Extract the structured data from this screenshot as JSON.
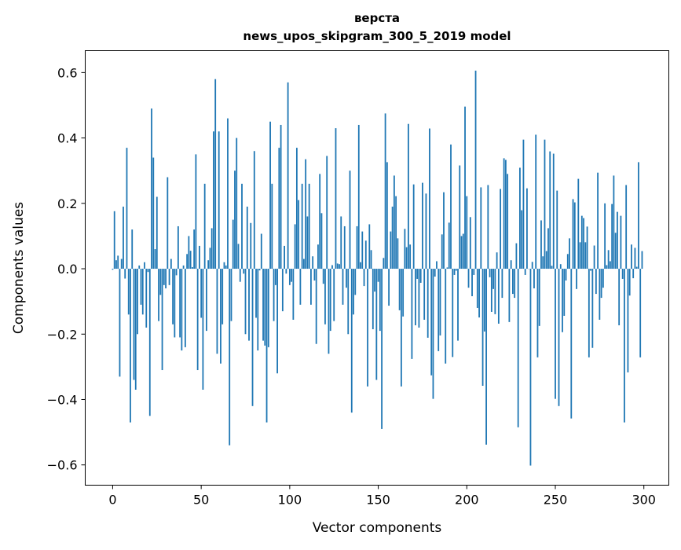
{
  "chart_data": {
    "type": "bar",
    "title_lines": [
      "верста",
      "news_upos_skipgram_300_5_2019 model"
    ],
    "xlabel": "Vector components",
    "ylabel": "Components values",
    "xlim": [
      -15.5,
      314.1
    ],
    "ylim": [
      -0.662,
      0.667
    ],
    "xticks": [
      0,
      50,
      100,
      150,
      200,
      250,
      300
    ],
    "xtick_labels": [
      "0",
      "50",
      "100",
      "150",
      "200",
      "250",
      "300"
    ],
    "yticks": [
      -0.6,
      -0.4,
      -0.2,
      0.0,
      0.2,
      0.4,
      0.6
    ],
    "ytick_labels": [
      "−0.6",
      "−0.4",
      "−0.2",
      "0.0",
      "0.2",
      "0.4",
      "0.6"
    ],
    "grid": false,
    "bar_color": "#1f77b4",
    "bar_width": 0.8,
    "values": [
      -0.003,
      0.176,
      0.026,
      0.04,
      -0.33,
      0.03,
      0.19,
      -0.03,
      0.37,
      -0.14,
      -0.47,
      0.12,
      -0.34,
      -0.37,
      -0.2,
      0.01,
      -0.11,
      -0.14,
      0.02,
      -0.18,
      -0.01,
      -0.45,
      0.49,
      0.34,
      0.06,
      0.22,
      -0.16,
      -0.08,
      -0.31,
      -0.05,
      -0.06,
      0.28,
      -0.05,
      0.03,
      -0.17,
      -0.21,
      -0.02,
      0.13,
      -0.21,
      -0.25,
      0.01,
      -0.24,
      0.045,
      0.1,
      0.055,
      0.005,
      0.12,
      0.35,
      -0.31,
      0.07,
      -0.15,
      -0.37,
      0.26,
      -0.19,
      0.026,
      0.064,
      0.124,
      0.42,
      0.58,
      -0.26,
      0.42,
      -0.29,
      -0.17,
      0.02,
      0.01,
      0.46,
      -0.54,
      -0.16,
      0.15,
      0.3,
      0.4,
      0.076,
      -0.04,
      0.26,
      -0.015,
      -0.2,
      0.19,
      -0.22,
      0.14,
      -0.42,
      0.36,
      -0.15,
      -0.25,
      -0.005,
      0.107,
      -0.22,
      -0.235,
      -0.47,
      -0.24,
      0.45,
      0.26,
      -0.16,
      -0.05,
      -0.32,
      0.37,
      0.44,
      -0.13,
      0.07,
      -0.015,
      0.57,
      -0.05,
      -0.04,
      -0.156,
      0.136,
      0.37,
      0.21,
      -0.11,
      0.26,
      0.03,
      0.335,
      0.16,
      0.26,
      -0.11,
      0.038,
      -0.036,
      -0.23,
      0.074,
      0.29,
      0.17,
      -0.046,
      -0.17,
      0.345,
      -0.26,
      -0.19,
      0.011,
      -0.16,
      0.43,
      0.016,
      0.014,
      0.16,
      -0.11,
      0.13,
      -0.058,
      -0.2,
      0.3,
      -0.44,
      -0.14,
      -0.08,
      0.13,
      0.44,
      0.02,
      0.114,
      -0.053,
      0.086,
      -0.36,
      0.136,
      0.057,
      -0.185,
      -0.07,
      -0.34,
      -0.04,
      -0.19,
      -0.49,
      0.033,
      0.475,
      0.326,
      -0.113,
      0.114,
      0.19,
      0.285,
      0.222,
      0.093,
      -0.127,
      -0.36,
      -0.146,
      0.122,
      0.066,
      0.443,
      0.074,
      -0.276,
      0.258,
      -0.173,
      -0.031,
      -0.18,
      -0.043,
      0.263,
      -0.156,
      0.23,
      -0.211,
      0.429,
      -0.326,
      -0.398,
      -0.024,
      0.023,
      -0.252,
      -0.204,
      0.105,
      0.234,
      -0.29,
      0.004,
      0.141,
      0.38,
      -0.27,
      -0.019,
      -0.006,
      -0.22,
      0.316,
      0.1,
      0.107,
      0.496,
      0.222,
      -0.058,
      0.158,
      -0.084,
      -0.019,
      0.606,
      -0.12,
      -0.149,
      0.249,
      -0.358,
      -0.192,
      -0.538,
      0.256,
      -0.026,
      -0.132,
      -0.062,
      -0.139,
      0.05,
      -0.168,
      0.244,
      -0.089,
      0.338,
      0.333,
      0.29,
      -0.163,
      0.026,
      -0.077,
      -0.089,
      0.078,
      -0.485,
      0.309,
      0.179,
      0.395,
      -0.019,
      0.246,
      0.0,
      -0.602,
      0.021,
      -0.06,
      0.41,
      -0.271,
      -0.175,
      0.148,
      0.038,
      0.395,
      0.054,
      0.124,
      0.359,
      0.009,
      0.352,
      -0.398,
      0.239,
      -0.42,
      0.014,
      -0.194,
      -0.144,
      -0.036,
      0.045,
      0.093,
      -0.458,
      0.213,
      0.203,
      -0.062,
      0.275,
      0.081,
      0.162,
      0.155,
      0.081,
      0.129,
      -0.271,
      -0.006,
      -0.242,
      0.071,
      -0.077,
      0.294,
      -0.156,
      -0.089,
      -0.058,
      0.2,
      0.011,
      0.057,
      0.023,
      0.198,
      0.285,
      0.11,
      0.174,
      -0.173,
      0.162,
      -0.031,
      -0.47,
      0.256,
      -0.317,
      -0.082,
      0.074,
      -0.029,
      0.064,
      0.006,
      0.326,
      -0.271,
      0.054
    ]
  }
}
